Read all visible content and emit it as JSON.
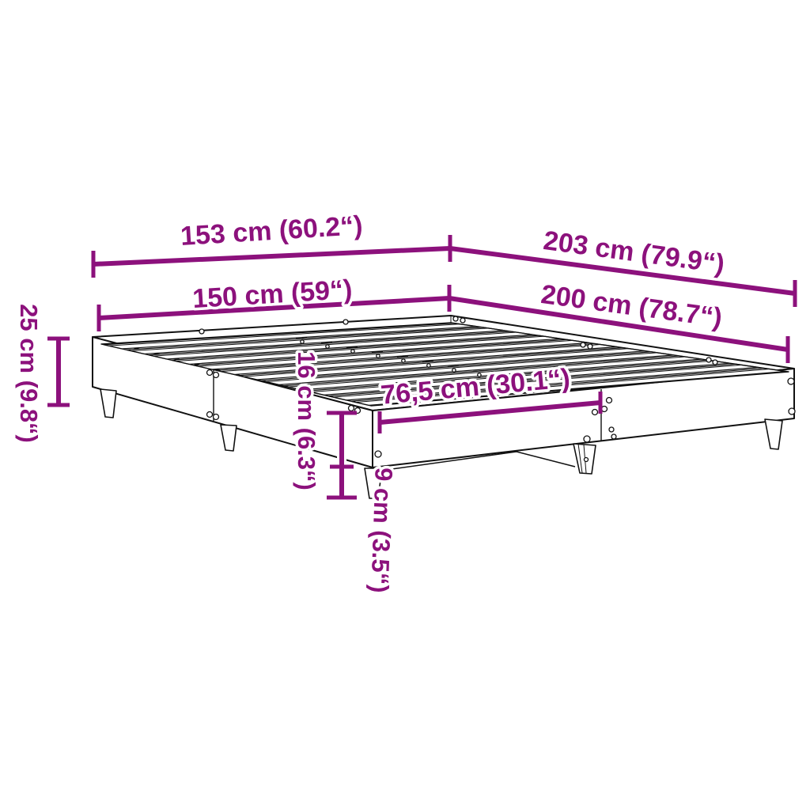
{
  "diagram": {
    "type": "product-dimension-diagram",
    "subject": "bed-frame-with-slatted-base",
    "colors": {
      "dimension": "#8c117c",
      "outline": "#111111",
      "background": "#ffffff"
    },
    "labels": {
      "frame_width": "153 cm (60.2“)",
      "mattress_width": "150 cm (59“)",
      "frame_length": "203 cm (79.9“)",
      "mattress_length": "200 cm (78.7“)",
      "total_height": "25 cm (9.8“)",
      "rail_height": "16 cm (6.3“)",
      "ground_clearance": "9 cm (3.5“)",
      "half_width": "76,5 cm (30.1“)"
    }
  }
}
